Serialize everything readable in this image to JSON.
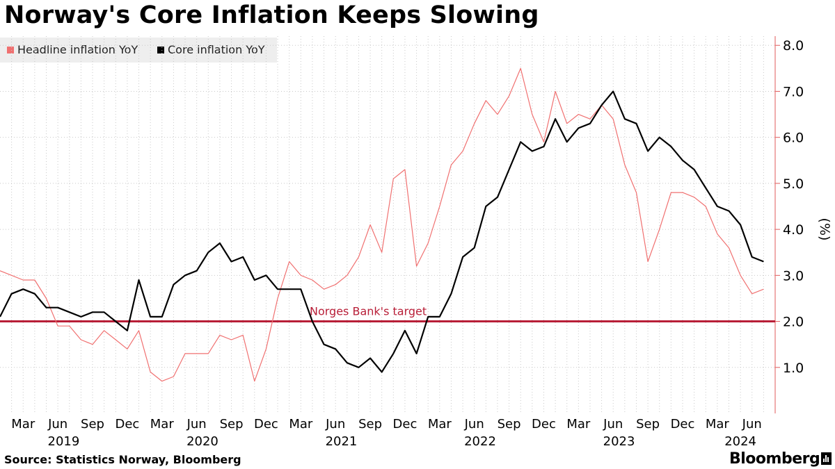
{
  "title": "Norway's Core Inflation Keeps Slowing",
  "source": "Source: Statistics Norway, Bloomberg",
  "brand": "Bloomberg",
  "colors": {
    "headline": "#f07070",
    "core": "#000000",
    "target": "#b81e37",
    "axis": "#e05a5a",
    "grid": "#c8c8c8"
  },
  "legend": [
    {
      "label": "Headline inflation YoY",
      "color": "#f07070"
    },
    {
      "label": "Core inflation YoY",
      "color": "#000000"
    }
  ],
  "chart_data": {
    "type": "line",
    "title": "Norway's Core Inflation Keeps Slowing",
    "ylabel": "(%)",
    "ylim": [
      0,
      8.2
    ],
    "y_ticks": [
      1.0,
      2.0,
      3.0,
      4.0,
      5.0,
      6.0,
      7.0,
      8.0
    ],
    "y_axis_position": "right",
    "x_range_months": [
      0,
      67
    ],
    "x_unit": "months since Jan 2019",
    "x_ticks": [
      {
        "m": 2,
        "label": "Mar"
      },
      {
        "m": 5,
        "label": "Jun"
      },
      {
        "m": 8,
        "label": "Sep"
      },
      {
        "m": 11,
        "label": "Dec"
      },
      {
        "m": 14,
        "label": "Mar"
      },
      {
        "m": 17,
        "label": "Jun"
      },
      {
        "m": 20,
        "label": "Sep"
      },
      {
        "m": 23,
        "label": "Dec"
      },
      {
        "m": 26,
        "label": "Mar"
      },
      {
        "m": 29,
        "label": "Jun"
      },
      {
        "m": 32,
        "label": "Sep"
      },
      {
        "m": 35,
        "label": "Dec"
      },
      {
        "m": 38,
        "label": "Mar"
      },
      {
        "m": 41,
        "label": "Jun"
      },
      {
        "m": 44,
        "label": "Sep"
      },
      {
        "m": 47,
        "label": "Dec"
      },
      {
        "m": 50,
        "label": "Mar"
      },
      {
        "m": 53,
        "label": "Jun"
      },
      {
        "m": 56,
        "label": "Sep"
      },
      {
        "m": 59,
        "label": "Dec"
      },
      {
        "m": 62,
        "label": "Mar"
      },
      {
        "m": 65,
        "label": "Jun"
      }
    ],
    "year_labels": [
      {
        "m": 5.5,
        "label": "2019"
      },
      {
        "m": 17.5,
        "label": "2020"
      },
      {
        "m": 29.5,
        "label": "2021"
      },
      {
        "m": 41.5,
        "label": "2022"
      },
      {
        "m": 53.5,
        "label": "2023"
      },
      {
        "m": 64,
        "label": "2024"
      }
    ],
    "series": [
      {
        "name": "Headline inflation YoY",
        "start_month": 0,
        "values": [
          3.1,
          3.0,
          2.9,
          2.9,
          2.5,
          1.9,
          1.9,
          1.6,
          1.5,
          1.8,
          1.6,
          1.4,
          1.8,
          0.9,
          0.7,
          0.8,
          1.3,
          1.3,
          1.3,
          1.7,
          1.6,
          1.7,
          0.7,
          1.4,
          2.5,
          3.3,
          3.0,
          2.9,
          2.7,
          2.8,
          3.0,
          3.4,
          4.1,
          3.5,
          5.1,
          5.3,
          3.2,
          3.7,
          4.5,
          5.4,
          5.7,
          6.3,
          6.8,
          6.5,
          6.9,
          7.5,
          6.5,
          5.9,
          7.0,
          6.3,
          6.5,
          6.4,
          6.7,
          6.4,
          5.4,
          4.8,
          3.3,
          4.0,
          4.8,
          4.8,
          4.7,
          4.5,
          3.9,
          3.6,
          3.0,
          2.6,
          2.7
        ]
      },
      {
        "name": "Core inflation YoY",
        "start_month": 0,
        "values": [
          2.1,
          2.6,
          2.7,
          2.6,
          2.3,
          2.3,
          2.2,
          2.1,
          2.2,
          2.2,
          2.0,
          1.8,
          2.9,
          2.1,
          2.1,
          2.8,
          3.0,
          3.1,
          3.5,
          3.7,
          3.3,
          3.4,
          2.9,
          3.0,
          2.7,
          2.7,
          2.7,
          2.0,
          1.5,
          1.4,
          1.1,
          1.0,
          1.2,
          0.9,
          1.3,
          1.8,
          1.3,
          2.1,
          2.1,
          2.6,
          3.4,
          3.6,
          4.5,
          4.7,
          5.3,
          5.9,
          5.7,
          5.8,
          6.4,
          5.9,
          6.2,
          6.3,
          6.7,
          7.0,
          6.4,
          6.3,
          5.7,
          6.0,
          5.8,
          5.5,
          5.3,
          4.9,
          4.5,
          4.4,
          4.1,
          3.4,
          3.3
        ]
      }
    ],
    "annotations": [
      {
        "label": "Norges Bank's target",
        "y": 2.0
      }
    ]
  }
}
